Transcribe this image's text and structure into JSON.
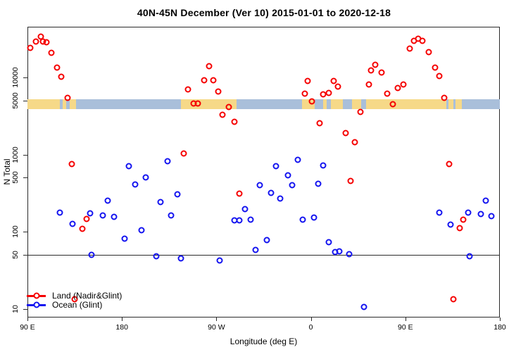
{
  "title": "40N-45N December (Ver 10)   2015-01-01 to 2020-12-18",
  "colors": {
    "land_series": "#f50000",
    "ocean_series": "#1414f0",
    "band_land": "#f6d988",
    "band_ocean": "#a9bfda",
    "axis": "#2b2b2b"
  },
  "legend": {
    "items": [
      {
        "label": "Land (Nadir&Glint)",
        "color": "#f50000"
      },
      {
        "label": "Ocean (Glint)",
        "color": "#1414f0"
      }
    ]
  },
  "chart_data": {
    "type": "scatter",
    "title": "40N-45N December (Ver 10)   2015-01-01 to 2020-12-18",
    "xlabel": "Longitude (deg E)",
    "ylabel": "N Total",
    "x_axis": {
      "min": 90,
      "max": 540,
      "note": "longitude axis wraps eastward: 90E -> 180 -> 90W -> 0 -> 90E -> 180",
      "ticks": [
        {
          "t": 90,
          "label": "90 E"
        },
        {
          "t": 180,
          "label": "180"
        },
        {
          "t": 270,
          "label": "90 W"
        },
        {
          "t": 360,
          "label": "0"
        },
        {
          "t": 450,
          "label": "90 E"
        },
        {
          "t": 540,
          "label": "180"
        }
      ]
    },
    "y_axis": {
      "scale": "log",
      "min": 8,
      "max": 45000,
      "ticks": [
        {
          "v": 10,
          "label": "10"
        },
        {
          "v": 50,
          "label": "50"
        },
        {
          "v": 100,
          "label": "100"
        },
        {
          "v": 500,
          "label": "500"
        },
        {
          "v": 1000,
          "label": "1000"
        },
        {
          "v": 5000,
          "label": "5000"
        },
        {
          "v": 10000,
          "label": "10000"
        }
      ]
    },
    "hline": 50,
    "band": {
      "value_top": 5200,
      "value_bottom": 3900,
      "segments": [
        {
          "from": 90,
          "to": 121,
          "type": "land"
        },
        {
          "from": 121,
          "to": 123.5,
          "type": "ocean"
        },
        {
          "from": 123.5,
          "to": 127,
          "type": "land"
        },
        {
          "from": 127,
          "to": 130.5,
          "type": "ocean"
        },
        {
          "from": 130.5,
          "to": 136,
          "type": "land"
        },
        {
          "from": 136,
          "to": 236,
          "type": "ocean"
        },
        {
          "from": 236,
          "to": 289,
          "type": "land"
        },
        {
          "from": 289,
          "to": 351.5,
          "type": "ocean"
        },
        {
          "from": 351.5,
          "to": 363.5,
          "type": "land"
        },
        {
          "from": 363.5,
          "to": 372,
          "type": "ocean"
        },
        {
          "from": 372,
          "to": 375,
          "type": "land"
        },
        {
          "from": 375,
          "to": 379,
          "type": "ocean"
        },
        {
          "from": 379,
          "to": 390.5,
          "type": "land"
        },
        {
          "from": 390.5,
          "to": 399,
          "type": "ocean"
        },
        {
          "from": 399,
          "to": 408,
          "type": "land"
        },
        {
          "from": 408,
          "to": 412.5,
          "type": "ocean"
        },
        {
          "from": 412.5,
          "to": 489,
          "type": "land"
        },
        {
          "from": 489,
          "to": 491,
          "type": "ocean"
        },
        {
          "from": 491,
          "to": 496,
          "type": "land"
        },
        {
          "from": 496,
          "to": 498,
          "type": "ocean"
        },
        {
          "from": 498,
          "to": 504,
          "type": "land"
        },
        {
          "from": 504,
          "to": 540,
          "type": "ocean"
        }
      ]
    },
    "series": [
      {
        "name": "Land (Nadir&Glint)",
        "color": "#f50000",
        "points": [
          [
            93,
            24000
          ],
          [
            98,
            29500
          ],
          [
            103,
            34000
          ],
          [
            105,
            29500
          ],
          [
            108,
            28800
          ],
          [
            113,
            21000
          ],
          [
            118,
            13400
          ],
          [
            122,
            10200
          ],
          [
            128,
            5400
          ],
          [
            132,
            745
          ],
          [
            135,
            13.4
          ],
          [
            142,
            109
          ],
          [
            146,
            145
          ],
          [
            239,
            1040
          ],
          [
            243,
            7000
          ],
          [
            248,
            4600
          ],
          [
            252,
            4550
          ],
          [
            258,
            9200
          ],
          [
            263,
            14000
          ],
          [
            267,
            9200
          ],
          [
            272,
            6600
          ],
          [
            276,
            3300
          ],
          [
            282,
            4100
          ],
          [
            287,
            2640
          ],
          [
            292,
            313
          ],
          [
            354,
            6150
          ],
          [
            357,
            9000
          ],
          [
            361,
            4900
          ],
          [
            368,
            2530
          ],
          [
            372,
            6000
          ],
          [
            377,
            6300
          ],
          [
            382,
            9000
          ],
          [
            386,
            7600
          ],
          [
            393,
            1880
          ],
          [
            398,
            458
          ],
          [
            402,
            1430
          ],
          [
            407,
            3600
          ],
          [
            415,
            8100
          ],
          [
            417,
            12400
          ],
          [
            421,
            14600
          ],
          [
            427,
            11600
          ],
          [
            433,
            6150
          ],
          [
            438,
            4500
          ],
          [
            443,
            7300
          ],
          [
            448,
            8100
          ],
          [
            454,
            23800
          ],
          [
            458,
            30000
          ],
          [
            462,
            32000
          ],
          [
            466,
            30000
          ],
          [
            472,
            21400
          ],
          [
            478,
            13400
          ],
          [
            482,
            10400
          ],
          [
            487,
            5400
          ],
          [
            492,
            745
          ],
          [
            496,
            13.4
          ],
          [
            502,
            111
          ],
          [
            505,
            143
          ]
        ]
      },
      {
        "name": "Ocean (Glint)",
        "color": "#1414f0",
        "points": [
          [
            121,
            177
          ],
          [
            133,
            126
          ],
          [
            150,
            173
          ],
          [
            151,
            50
          ],
          [
            162,
            163
          ],
          [
            166.5,
            253
          ],
          [
            172.5,
            156
          ],
          [
            182.5,
            81
          ],
          [
            186.5,
            713
          ],
          [
            192.5,
            412
          ],
          [
            198.5,
            104
          ],
          [
            203,
            508
          ],
          [
            213,
            48
          ],
          [
            217,
            243
          ],
          [
            223.5,
            826
          ],
          [
            227,
            163
          ],
          [
            233,
            306
          ],
          [
            236,
            45
          ],
          [
            273,
            42
          ],
          [
            287,
            140
          ],
          [
            292,
            140
          ],
          [
            297,
            197
          ],
          [
            302.5,
            143
          ],
          [
            307,
            58
          ],
          [
            311,
            404
          ],
          [
            318,
            78
          ],
          [
            322,
            320
          ],
          [
            327,
            713
          ],
          [
            331,
            270
          ],
          [
            338,
            542
          ],
          [
            342,
            404
          ],
          [
            347.5,
            863
          ],
          [
            352,
            143
          ],
          [
            363,
            152
          ],
          [
            367,
            421
          ],
          [
            371.5,
            728
          ],
          [
            377,
            73
          ],
          [
            383,
            54
          ],
          [
            387,
            56
          ],
          [
            396.5,
            51
          ],
          [
            410.5,
            10.5
          ],
          [
            482,
            177
          ],
          [
            493,
            124
          ],
          [
            510,
            175
          ],
          [
            511,
            48
          ],
          [
            522,
            168
          ],
          [
            526.5,
            253
          ],
          [
            532,
            160
          ]
        ]
      }
    ]
  }
}
